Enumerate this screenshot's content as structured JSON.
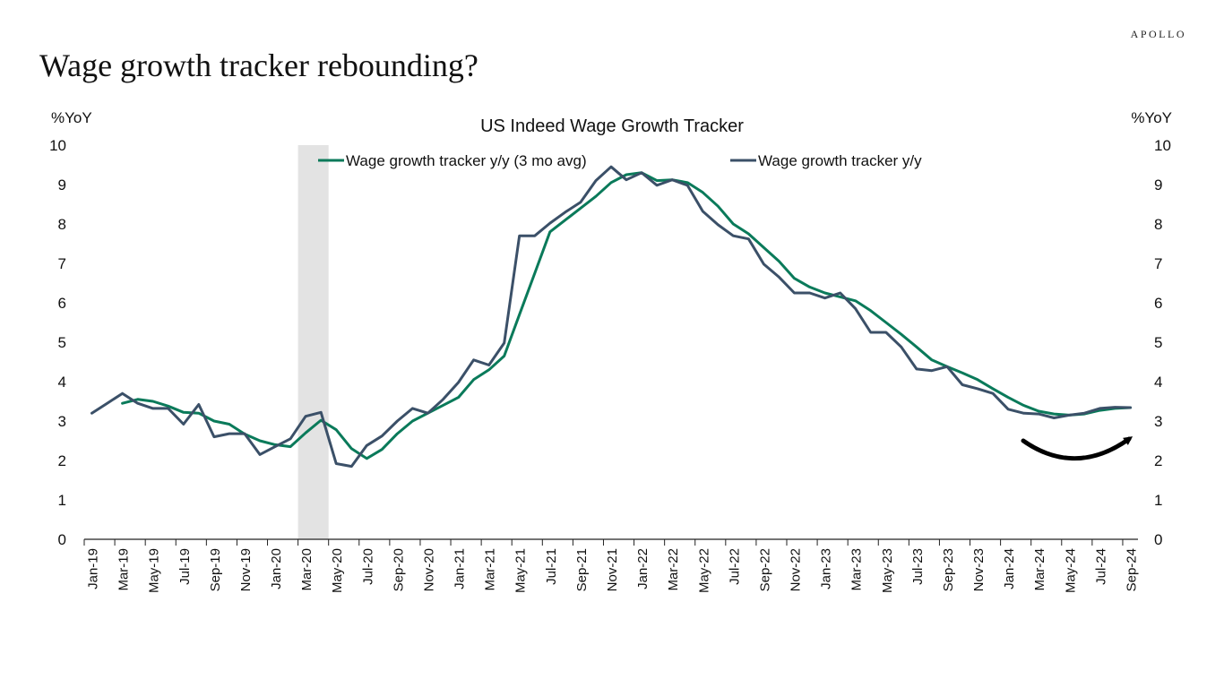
{
  "brand": "APOLLO",
  "page_title": "Wage growth tracker rebounding?",
  "chart_data": {
    "type": "line",
    "title": "US Indeed Wage Growth Tracker",
    "ylabel_left": "%YoY",
    "ylabel_right": "%YoY",
    "ylim": [
      0,
      10
    ],
    "yticks": [
      0,
      1,
      2,
      3,
      4,
      5,
      6,
      7,
      8,
      9,
      10
    ],
    "grid": false,
    "legend_position": "top",
    "x_labels": [
      "Jan-19",
      "Mar-19",
      "May-19",
      "Jul-19",
      "Sep-19",
      "Nov-19",
      "Jan-20",
      "Mar-20",
      "May-20",
      "Jul-20",
      "Sep-20",
      "Nov-20",
      "Jan-21",
      "Mar-21",
      "May-21",
      "Jul-21",
      "Sep-21",
      "Nov-21",
      "Jan-22",
      "Mar-22",
      "May-22",
      "Jul-22",
      "Sep-22",
      "Nov-22",
      "Jan-23",
      "Mar-23",
      "May-23",
      "Jul-23",
      "Sep-23",
      "Nov-23",
      "Jan-24",
      "Mar-24",
      "May-24",
      "Jul-24",
      "Sep-24"
    ],
    "months": [
      "Jan-19",
      "Feb-19",
      "Mar-19",
      "Apr-19",
      "May-19",
      "Jun-19",
      "Jul-19",
      "Aug-19",
      "Sep-19",
      "Oct-19",
      "Nov-19",
      "Dec-19",
      "Jan-20",
      "Feb-20",
      "Mar-20",
      "Apr-20",
      "May-20",
      "Jun-20",
      "Jul-20",
      "Aug-20",
      "Sep-20",
      "Oct-20",
      "Nov-20",
      "Dec-20",
      "Jan-21",
      "Feb-21",
      "Mar-21",
      "Apr-21",
      "May-21",
      "Jun-21",
      "Jul-21",
      "Aug-21",
      "Sep-21",
      "Oct-21",
      "Nov-21",
      "Dec-21",
      "Jan-22",
      "Feb-22",
      "Mar-22",
      "Apr-22",
      "May-22",
      "Jun-22",
      "Jul-22",
      "Aug-22",
      "Sep-22",
      "Oct-22",
      "Nov-22",
      "Dec-22",
      "Jan-23",
      "Feb-23",
      "Mar-23",
      "Apr-23",
      "May-23",
      "Jun-23",
      "Jul-23",
      "Aug-23",
      "Sep-23",
      "Oct-23",
      "Nov-23",
      "Dec-23",
      "Jan-24",
      "Feb-24",
      "Mar-24",
      "Apr-24",
      "May-24",
      "Jun-24",
      "Jul-24",
      "Aug-24",
      "Sep-24"
    ],
    "recession_shading": {
      "start": "Mar-20",
      "end": "Apr-20",
      "color": "#e3e3e3"
    },
    "series": [
      {
        "name": "Wage growth tracker y/y (3 mo avg)",
        "color": "#0a7a5a",
        "values": [
          null,
          null,
          3.45,
          3.55,
          3.5,
          3.38,
          3.22,
          3.2,
          3.0,
          2.92,
          2.67,
          2.5,
          2.4,
          2.35,
          2.7,
          3.02,
          2.78,
          2.3,
          2.05,
          2.28,
          2.68,
          3.0,
          3.2,
          3.4,
          3.6,
          4.05,
          4.3,
          4.65,
          5.7,
          6.75,
          7.8,
          8.1,
          8.4,
          8.7,
          9.05,
          9.25,
          9.3,
          9.1,
          9.12,
          9.05,
          8.8,
          8.45,
          8.0,
          7.75,
          7.4,
          7.05,
          6.62,
          6.4,
          6.25,
          6.15,
          6.05,
          5.8,
          5.5,
          5.2,
          4.88,
          4.55,
          4.38,
          4.22,
          4.05,
          3.82,
          3.6,
          3.4,
          3.25,
          3.18,
          3.15,
          3.18,
          3.27,
          3.32,
          3.34
        ]
      },
      {
        "name": "Wage growth tracker y/y",
        "color": "#3b5068",
        "values": [
          3.2,
          3.45,
          3.7,
          3.45,
          3.32,
          3.32,
          2.92,
          3.42,
          2.6,
          2.68,
          2.68,
          2.15,
          2.35,
          2.55,
          3.12,
          3.22,
          1.92,
          1.85,
          2.38,
          2.62,
          3.0,
          3.32,
          3.2,
          3.55,
          3.98,
          4.55,
          4.42,
          4.98,
          7.7,
          7.7,
          8.02,
          8.3,
          8.55,
          9.1,
          9.45,
          9.12,
          9.3,
          8.98,
          9.12,
          8.98,
          8.32,
          7.98,
          7.7,
          7.62,
          6.98,
          6.65,
          6.25,
          6.25,
          6.12,
          6.25,
          5.85,
          5.25,
          5.25,
          4.88,
          4.32,
          4.28,
          4.38,
          3.92,
          3.82,
          3.7,
          3.3,
          3.2,
          3.18,
          3.08,
          3.15,
          3.2,
          3.32,
          3.35,
          3.34
        ]
      }
    ],
    "annotation": "curved arrow indicating rebound"
  }
}
